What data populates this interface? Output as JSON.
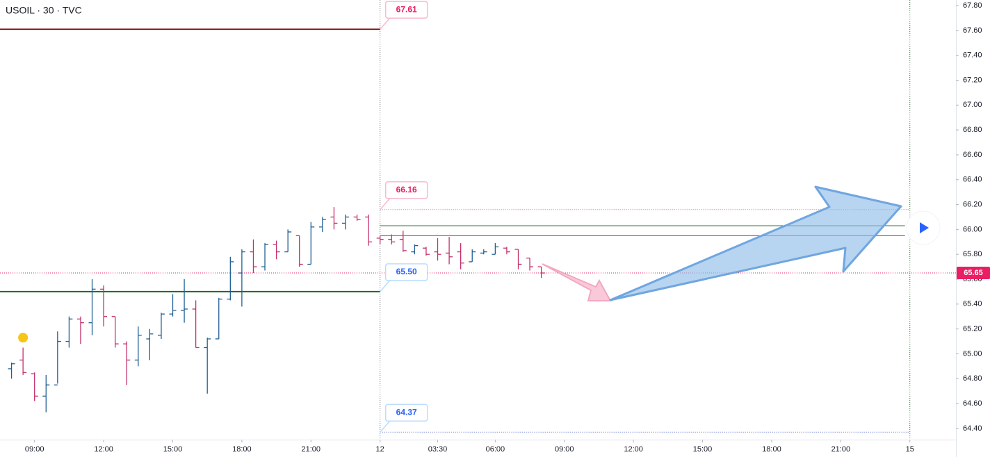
{
  "chart_data": {
    "type": "ohlc",
    "title": "USOIL · 30 · TVC",
    "up_color": "#1f5f94",
    "down_color": "#c2306b",
    "x": [
      1,
      2,
      3,
      4,
      5,
      6,
      7,
      8,
      9,
      10,
      11,
      12,
      13,
      14,
      15,
      16,
      17,
      18,
      19,
      20,
      21,
      22,
      23,
      24,
      25,
      26,
      27,
      28,
      29,
      30,
      31,
      32,
      33,
      34,
      35,
      36,
      37,
      38,
      39,
      40,
      41,
      42,
      43,
      44,
      45,
      46,
      47
    ],
    "open": [
      64.88,
      64.95,
      64.84,
      64.66,
      64.75,
      65.1,
      65.28,
      65.25,
      65.52,
      65.3,
      65.08,
      64.95,
      65.12,
      65.15,
      65.32,
      65.35,
      65.36,
      65.05,
      65.12,
      65.44,
      65.65,
      65.82,
      65.7,
      65.88,
      65.82,
      65.95,
      65.72,
      66.02,
      66.1,
      66.05,
      66.1,
      66.1,
      65.93,
      65.92,
      65.92,
      65.82,
      65.85,
      65.82,
      65.81,
      65.82,
      65.74,
      65.81,
      65.8,
      65.85,
      65.84,
      65.77,
      65.7
    ],
    "high": [
      64.93,
      65.05,
      64.85,
      64.83,
      65.18,
      65.3,
      65.3,
      65.6,
      65.55,
      65.3,
      65.1,
      65.22,
      65.2,
      65.33,
      65.48,
      65.6,
      65.43,
      65.13,
      65.45,
      65.78,
      65.84,
      65.92,
      65.89,
      65.91,
      66.0,
      65.95,
      66.06,
      66.1,
      66.18,
      66.12,
      66.12,
      66.12,
      65.95,
      65.96,
      65.99,
      65.88,
      65.86,
      65.93,
      65.94,
      65.89,
      65.84,
      65.84,
      65.89,
      65.86,
      65.84,
      65.77,
      65.7
    ],
    "low": [
      64.8,
      64.83,
      64.62,
      64.53,
      64.76,
      65.05,
      65.08,
      65.15,
      65.22,
      65.05,
      64.75,
      64.9,
      64.95,
      65.12,
      65.3,
      65.25,
      65.05,
      64.68,
      65.12,
      65.43,
      65.38,
      65.65,
      65.67,
      65.76,
      65.82,
      65.7,
      65.72,
      65.98,
      66.0,
      66.0,
      66.07,
      65.87,
      65.88,
      65.88,
      65.82,
      65.8,
      65.79,
      65.75,
      65.72,
      65.68,
      65.74,
      65.8,
      65.8,
      65.8,
      65.68,
      65.67,
      65.61
    ],
    "close": [
      64.92,
      64.85,
      64.66,
      64.75,
      65.1,
      65.28,
      65.25,
      65.52,
      65.3,
      65.08,
      64.95,
      65.15,
      65.16,
      65.32,
      65.35,
      65.36,
      65.05,
      65.12,
      65.44,
      65.74,
      65.82,
      65.7,
      65.88,
      65.82,
      65.98,
      65.72,
      66.02,
      66.08,
      66.05,
      66.1,
      66.08,
      65.9,
      65.92,
      65.9,
      65.83,
      65.87,
      65.8,
      65.8,
      65.78,
      65.73,
      65.82,
      65.82,
      65.86,
      65.82,
      65.72,
      65.7,
      65.65
    ],
    "xlim": [
      0,
      83
    ],
    "ylim": [
      64.31,
      67.845
    ],
    "xticks": [
      {
        "value": 3,
        "label": "09:00"
      },
      {
        "value": 9,
        "label": "12:00"
      },
      {
        "value": 15,
        "label": "15:00"
      },
      {
        "value": 21,
        "label": "18:00"
      },
      {
        "value": 27,
        "label": "21:00"
      },
      {
        "value": 33,
        "label": "12"
      },
      {
        "value": 38,
        "label": "03:30"
      },
      {
        "value": 43,
        "label": "06:00"
      },
      {
        "value": 49,
        "label": "09:00"
      },
      {
        "value": 55,
        "label": "12:00"
      },
      {
        "value": 61,
        "label": "15:00"
      },
      {
        "value": 67,
        "label": "18:00"
      },
      {
        "value": 73,
        "label": "21:00"
      },
      {
        "value": 79,
        "label": "15"
      }
    ],
    "yticks": [
      {
        "value": 67.8,
        "label": "67.80"
      },
      {
        "value": 67.6,
        "label": "67.60"
      },
      {
        "value": 67.4,
        "label": "67.40"
      },
      {
        "value": 67.2,
        "label": "67.20"
      },
      {
        "value": 67,
        "label": "67.00"
      },
      {
        "value": 66.8,
        "label": "66.80"
      },
      {
        "value": 66.6,
        "label": "66.60"
      },
      {
        "value": 66.4,
        "label": "66.40"
      },
      {
        "value": 66.2,
        "label": "66.20"
      },
      {
        "value": 66,
        "label": "66.00"
      },
      {
        "value": 65.8,
        "label": "65.80"
      },
      {
        "value": 65.6,
        "label": "65.60"
      },
      {
        "value": 65.4,
        "label": "65.40"
      },
      {
        "value": 65.2,
        "label": "65.20"
      },
      {
        "value": 65,
        "label": "65.00"
      },
      {
        "value": 64.8,
        "label": "64.80"
      },
      {
        "value": 64.6,
        "label": "64.60"
      },
      {
        "value": 64.4,
        "label": "64.40"
      }
    ],
    "levels": [
      {
        "value": 67.61,
        "label": "67.61",
        "color": "#8b1a1a",
        "tone": "pink",
        "span": "left",
        "dash": "solid"
      },
      {
        "value": 65.5,
        "label": "65.50",
        "color": "#1b6b1b",
        "tone": "blue",
        "span": "left",
        "dash": "solid"
      },
      {
        "value": 66.16,
        "label": "66.16",
        "color": "#e06090",
        "tone": "pink",
        "span": "right",
        "dash": "dotted"
      },
      {
        "value": 64.37,
        "label": "64.37",
        "color": "#5b6fd0",
        "tone": "blue",
        "span": "right",
        "dash": "dotted"
      }
    ],
    "guides": [
      {
        "value": 66.03,
        "color": "#2e7d32"
      },
      {
        "value": 65.95,
        "color": "#2e7d32"
      }
    ],
    "current_price": {
      "value": 65.65,
      "label": "65.65",
      "color": "#e91e63"
    },
    "marker": {
      "x": 2,
      "y": 65.13,
      "color": "#f5c518"
    }
  }
}
